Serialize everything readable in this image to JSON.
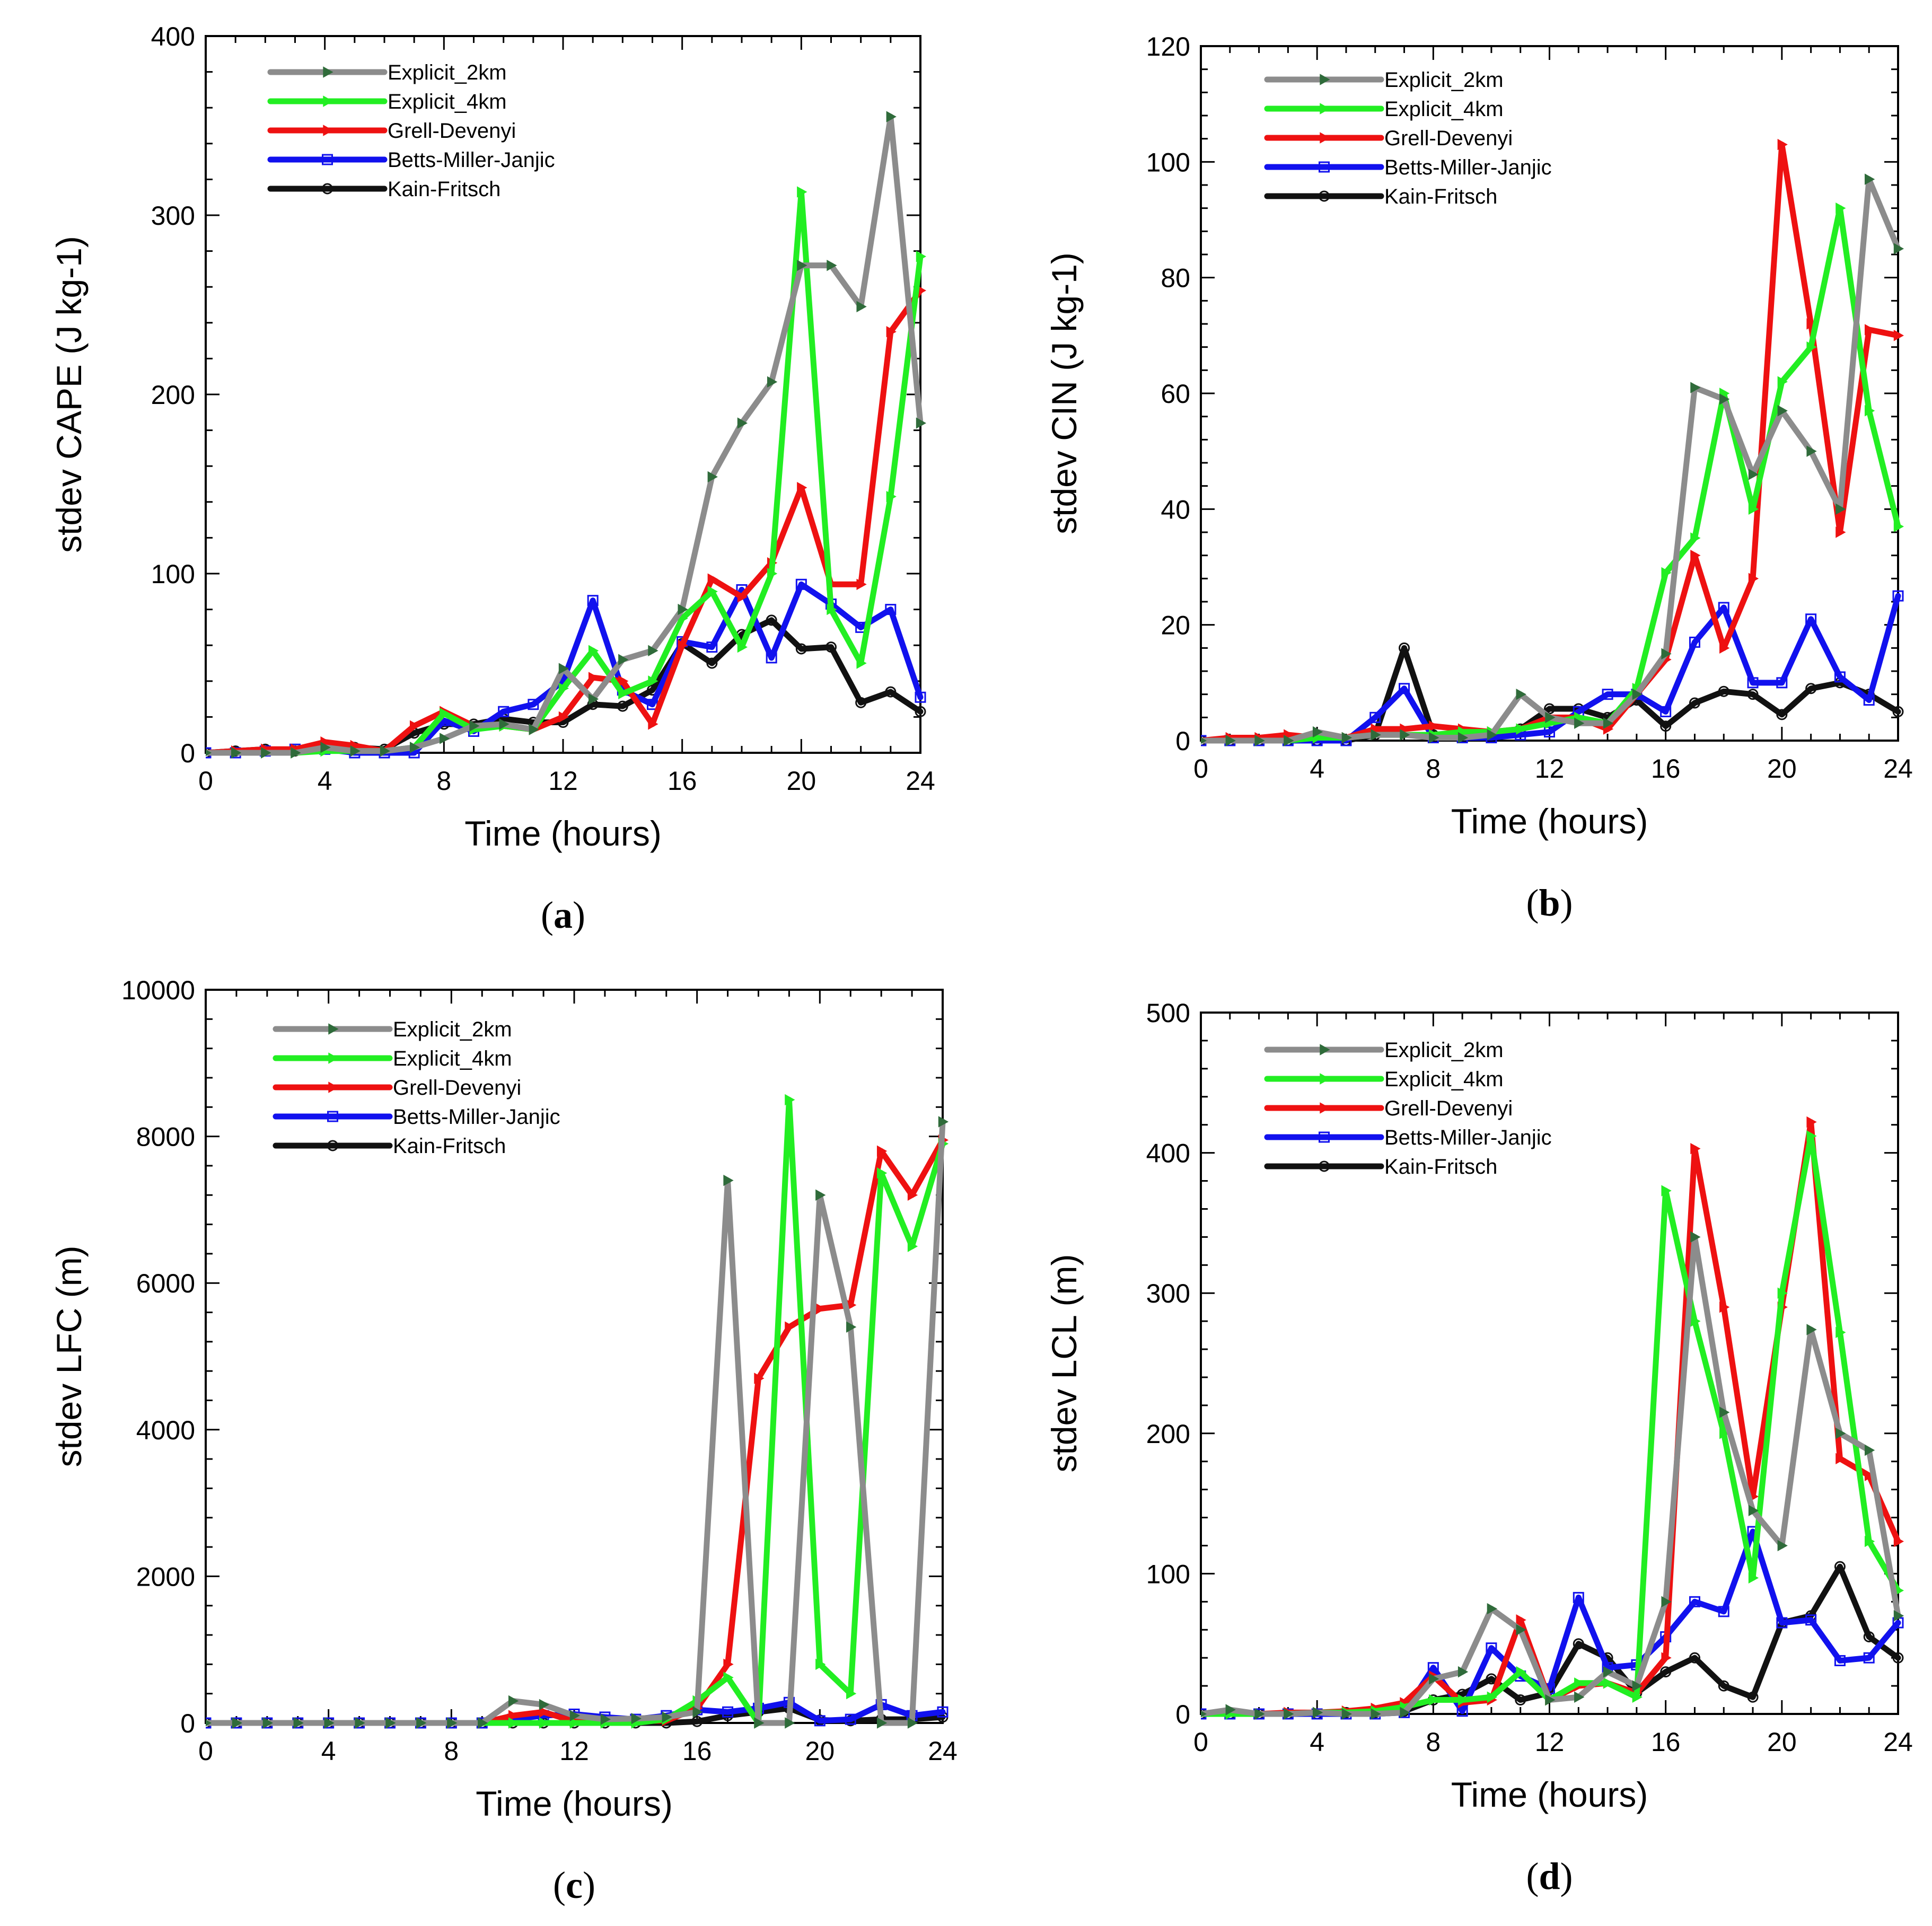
{
  "colors": {
    "Explicit_2km": "#8c8c8c",
    "Explicit_4km": "#22ee22",
    "Grell-Devenyi": "#ee1111",
    "Betts-Miller-Janjic": "#1111ee",
    "Kain-Fritsch": "#111111",
    "marker_2km": "#2f6b3a"
  },
  "chart_data": [
    {
      "id": "a",
      "type": "line",
      "panel_label": "a",
      "title": "",
      "xlabel": "Time (hours)",
      "ylabel": "stdev CAPE (J kg-1)",
      "xlim": [
        0,
        24
      ],
      "ylim": [
        0,
        400
      ],
      "xticks": [
        0,
        4,
        8,
        12,
        16,
        20,
        24
      ],
      "yticks": [
        0,
        100,
        200,
        300,
        400
      ],
      "legend_position": "top-left",
      "x": [
        0,
        1,
        2,
        3,
        4,
        5,
        6,
        7,
        8,
        9,
        10,
        11,
        12,
        13,
        14,
        15,
        16,
        17,
        18,
        19,
        20,
        21,
        22,
        23,
        24
      ],
      "series": [
        {
          "name": "Explicit_2km",
          "values": [
            0,
            0,
            0,
            0,
            3,
            1,
            1,
            3,
            8,
            15,
            16,
            13,
            47,
            30,
            52,
            57,
            80,
            154,
            184,
            207,
            272,
            272,
            249,
            355,
            184
          ]
        },
        {
          "name": "Explicit_4km",
          "values": [
            0,
            0,
            0,
            0,
            1,
            1,
            1,
            3,
            22,
            13,
            15,
            13,
            36,
            57,
            33,
            40,
            75,
            90,
            59,
            100,
            313,
            80,
            50,
            143,
            277
          ]
        },
        {
          "name": "Grell-Devenyi",
          "values": [
            0,
            1,
            2,
            2,
            6,
            4,
            1,
            15,
            23,
            15,
            15,
            13,
            20,
            42,
            40,
            16,
            60,
            97,
            87,
            106,
            148,
            94,
            94,
            235,
            258
          ]
        },
        {
          "name": "Betts-Miller-Janjic",
          "values": [
            0,
            0,
            1,
            2,
            2,
            0,
            0,
            0,
            18,
            12,
            23,
            27,
            40,
            85,
            35,
            27,
            62,
            59,
            91,
            53,
            94,
            83,
            70,
            80,
            31
          ]
        },
        {
          "name": "Kain-Fritsch",
          "values": [
            0,
            1,
            2,
            1,
            4,
            3,
            2,
            11,
            16,
            16,
            19,
            17,
            17,
            27,
            26,
            35,
            61,
            50,
            66,
            74,
            58,
            59,
            28,
            34,
            23
          ]
        }
      ]
    },
    {
      "id": "b",
      "type": "line",
      "panel_label": "b",
      "title": "",
      "xlabel": "Time (hours)",
      "ylabel": "stdev CIN (J kg-1)",
      "xlim": [
        0,
        24
      ],
      "ylim": [
        0,
        120
      ],
      "xticks": [
        0,
        4,
        8,
        12,
        16,
        20,
        24
      ],
      "yticks": [
        0,
        20,
        40,
        60,
        80,
        100,
        120
      ],
      "legend_position": "top-left",
      "x": [
        0,
        1,
        2,
        3,
        4,
        5,
        6,
        7,
        8,
        9,
        10,
        11,
        12,
        13,
        14,
        15,
        16,
        17,
        18,
        19,
        20,
        21,
        22,
        23,
        24
      ],
      "series": [
        {
          "name": "Explicit_2km",
          "values": [
            0,
            0,
            0,
            0,
            1.5,
            0.5,
            1,
            1,
            0.5,
            0.5,
            1,
            8,
            4,
            3,
            3,
            8,
            15,
            61,
            59,
            46,
            57,
            50,
            40,
            97,
            85
          ]
        },
        {
          "name": "Explicit_4km",
          "values": [
            0,
            0,
            0,
            0,
            0.5,
            0.5,
            1,
            1,
            1,
            1.5,
            1.5,
            2,
            3,
            4,
            3,
            9,
            29,
            35,
            60,
            40,
            62,
            68,
            92,
            57,
            37
          ]
        },
        {
          "name": "Grell-Devenyi",
          "values": [
            0,
            0.5,
            0.5,
            1,
            0.5,
            0.5,
            2,
            2,
            2.5,
            2,
            1.5,
            2,
            4,
            4,
            2,
            8,
            14,
            32,
            16,
            28,
            103,
            72,
            36,
            71,
            70
          ]
        },
        {
          "name": "Betts-Miller-Janjic",
          "values": [
            0,
            0,
            0,
            0,
            0,
            0,
            4,
            9,
            0.5,
            0.5,
            0.5,
            1,
            1.5,
            5,
            8,
            8,
            5,
            17,
            23,
            10,
            10,
            21,
            11,
            7,
            25
          ]
        },
        {
          "name": "Kain-Fritsch",
          "values": [
            0,
            0,
            0,
            0,
            0,
            0,
            1,
            16,
            1,
            1,
            1,
            2,
            5.5,
            5.5,
            4,
            7,
            2.5,
            6.5,
            8.5,
            8,
            4.5,
            9,
            10,
            8,
            5
          ]
        }
      ]
    },
    {
      "id": "c",
      "type": "line",
      "panel_label": "c",
      "title": "",
      "xlabel": "Time (hours)",
      "ylabel": "stdev LFC (m)",
      "xlim": [
        0,
        24
      ],
      "ylim": [
        0,
        10000
      ],
      "xticks": [
        0,
        4,
        8,
        12,
        16,
        20,
        24
      ],
      "yticks": [
        0,
        2000,
        4000,
        6000,
        8000,
        10000
      ],
      "legend_position": "top-left",
      "x": [
        0,
        1,
        2,
        3,
        4,
        5,
        6,
        7,
        8,
        9,
        10,
        11,
        12,
        13,
        14,
        15,
        16,
        17,
        18,
        19,
        20,
        21,
        22,
        23,
        24
      ],
      "series": [
        {
          "name": "Explicit_2km",
          "values": [
            0,
            0,
            0,
            0,
            0,
            0,
            0,
            0,
            0,
            0,
            300,
            250,
            100,
            50,
            60,
            80,
            150,
            7400,
            0,
            0,
            7200,
            5400,
            0,
            0,
            8200
          ]
        },
        {
          "name": "Explicit_4km",
          "values": [
            0,
            0,
            0,
            0,
            0,
            0,
            0,
            0,
            0,
            0,
            0,
            0,
            0,
            0,
            0,
            50,
            300,
            620,
            0,
            8500,
            800,
            400,
            7500,
            6500,
            7900
          ]
        },
        {
          "name": "Grell-Devenyi",
          "values": [
            0,
            0,
            0,
            0,
            0,
            0,
            0,
            0,
            0,
            0,
            100,
            150,
            20,
            20,
            30,
            30,
            200,
            800,
            4700,
            5400,
            5650,
            5700,
            7800,
            7200,
            7950
          ]
        },
        {
          "name": "Betts-Miller-Janjic",
          "values": [
            0,
            0,
            0,
            0,
            0,
            0,
            0,
            0,
            0,
            0,
            50,
            100,
            120,
            80,
            50,
            100,
            180,
            150,
            200,
            280,
            30,
            50,
            250,
            100,
            150
          ]
        },
        {
          "name": "Kain-Fritsch",
          "values": [
            0,
            0,
            0,
            0,
            0,
            0,
            0,
            0,
            0,
            0,
            0,
            0,
            0,
            0,
            0,
            0,
            20,
            100,
            150,
            200,
            40,
            30,
            50,
            50,
            80
          ]
        }
      ]
    },
    {
      "id": "d",
      "type": "line",
      "panel_label": "d",
      "title": "",
      "xlabel": "Time (hours)",
      "ylabel": "stdev LCL (m)",
      "xlim": [
        0,
        24
      ],
      "ylim": [
        0,
        500
      ],
      "xticks": [
        0,
        4,
        8,
        12,
        16,
        20,
        24
      ],
      "yticks": [
        0,
        100,
        200,
        300,
        400,
        500
      ],
      "legend_position": "top-left",
      "x": [
        0,
        1,
        2,
        3,
        4,
        5,
        6,
        7,
        8,
        9,
        10,
        11,
        12,
        13,
        14,
        15,
        16,
        17,
        18,
        19,
        20,
        21,
        22,
        23,
        24
      ],
      "series": [
        {
          "name": "Explicit_2km",
          "values": [
            0,
            3,
            0,
            0,
            1,
            0,
            0,
            1,
            25,
            30,
            75,
            60,
            10,
            12,
            30,
            20,
            80,
            340,
            215,
            145,
            120,
            274,
            200,
            188,
            70
          ]
        },
        {
          "name": "Explicit_4km",
          "values": [
            0,
            0,
            0,
            0,
            1,
            1,
            2,
            5,
            10,
            10,
            12,
            30,
            10,
            22,
            22,
            12,
            373,
            280,
            200,
            97,
            300,
            412,
            272,
            123,
            88
          ]
        },
        {
          "name": "Grell-Devenyi",
          "values": [
            0,
            1,
            0,
            1,
            1,
            2,
            4,
            8,
            27,
            8,
            10,
            67,
            10,
            20,
            22,
            15,
            40,
            403,
            290,
            155,
            290,
            422,
            182,
            170,
            123
          ]
        },
        {
          "name": "Betts-Miller-Janjic",
          "values": [
            0,
            0,
            0,
            0,
            0,
            0,
            0,
            1,
            33,
            2,
            47,
            27,
            18,
            83,
            33,
            35,
            55,
            80,
            73,
            130,
            65,
            67,
            38,
            40,
            65
          ]
        },
        {
          "name": "Kain-Fritsch",
          "values": [
            0,
            0,
            0,
            0,
            0,
            1,
            1,
            2,
            10,
            14,
            25,
            10,
            15,
            50,
            40,
            15,
            30,
            40,
            20,
            12,
            65,
            70,
            105,
            55,
            40
          ]
        }
      ]
    }
  ]
}
